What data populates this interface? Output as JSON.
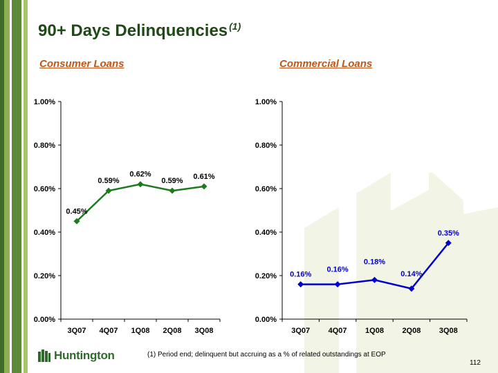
{
  "slide": {
    "title": "90+ Days Delinquencies",
    "title_note": "(1)",
    "footnote": "(1) Period end; delinquent but accruing as a % of related outstandings at EOP",
    "page_number": "112",
    "logo_text": "Huntington"
  },
  "colors": {
    "title": "#1f4a17",
    "subtitle": "#c0571a",
    "consumer_series": "#1d7a1d",
    "commercial_series": "#0000cc",
    "stripe_dark": "#3d6b2a",
    "stripe_light": "#8bb04d"
  },
  "chart_data": [
    {
      "type": "line",
      "title": "Consumer Loans",
      "categories": [
        "3Q07",
        "4Q07",
        "1Q08",
        "2Q08",
        "3Q08"
      ],
      "values": [
        0.45,
        0.59,
        0.62,
        0.59,
        0.61
      ],
      "data_labels": [
        "0.45%",
        "0.59%",
        "0.62%",
        "0.59%",
        "0.61%"
      ],
      "y_ticks": [
        "0.00%",
        "0.20%",
        "0.40%",
        "0.60%",
        "0.80%",
        "1.00%"
      ],
      "ylim": [
        0,
        1.0
      ],
      "grid": false,
      "marker": "diamond"
    },
    {
      "type": "line",
      "title": "Commercial Loans",
      "categories": [
        "3Q07",
        "4Q07",
        "1Q08",
        "2Q08",
        "3Q08"
      ],
      "values": [
        0.16,
        0.16,
        0.18,
        0.14,
        0.35
      ],
      "data_labels": [
        "0.16%",
        "0.16%",
        "0.18%",
        "0.14%",
        "0.35%"
      ],
      "y_ticks": [
        "0.00%",
        "0.20%",
        "0.40%",
        "0.60%",
        "0.80%",
        "1.00%"
      ],
      "ylim": [
        0,
        1.0
      ],
      "grid": false,
      "marker": "diamond"
    }
  ]
}
